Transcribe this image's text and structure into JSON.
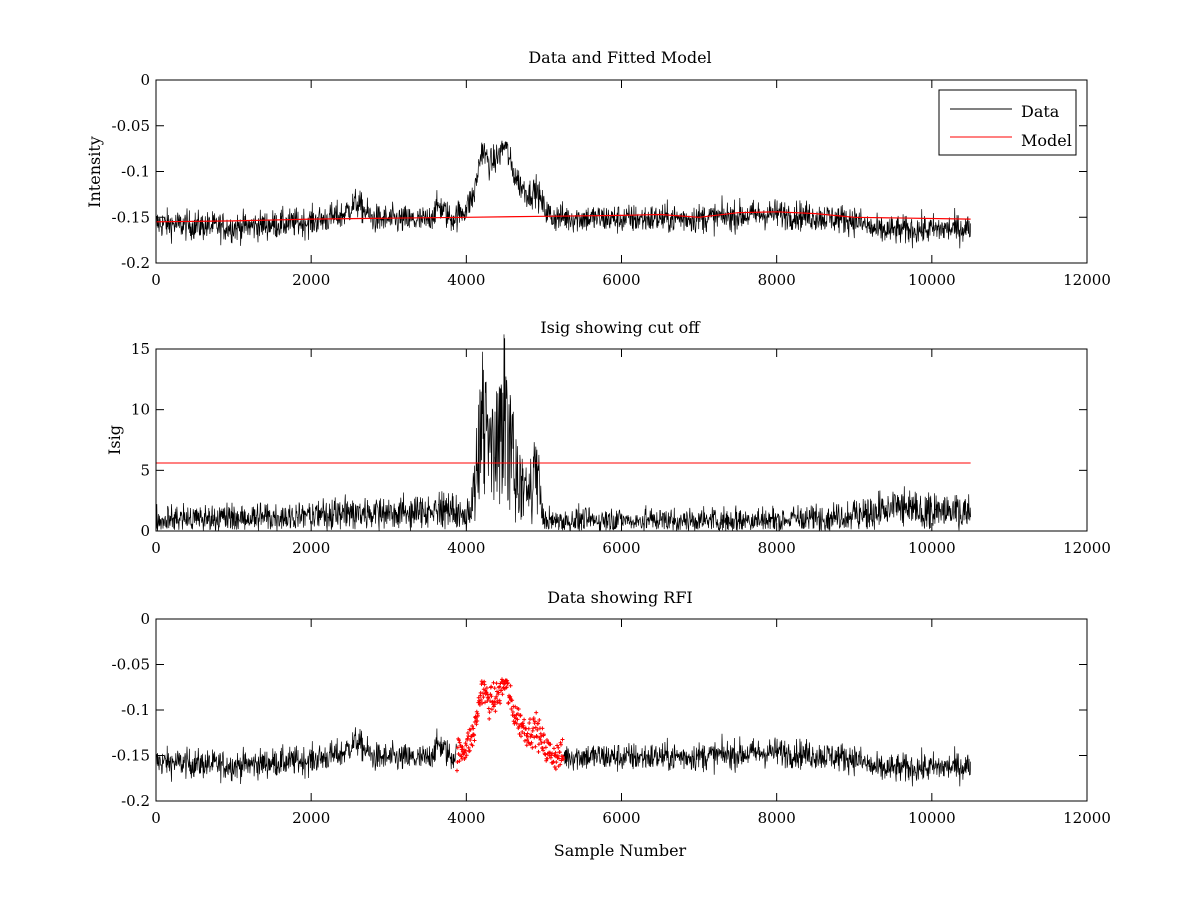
{
  "figure": {
    "background": "#ffffff",
    "colors": {
      "data": "#000000",
      "model": "#ff0000",
      "cutoff": "#ff0000",
      "rfi": "#ff0000"
    }
  },
  "chart_data": [
    {
      "type": "line",
      "title": "Data and Fitted Model",
      "xlabel": "",
      "ylabel": "Intensity",
      "xlim": [
        0,
        12000
      ],
      "ylim": [
        -0.2,
        0
      ],
      "xticks": [
        0,
        2000,
        4000,
        6000,
        8000,
        10000,
        12000
      ],
      "yticks": [
        -0.2,
        -0.15,
        -0.1,
        -0.05,
        0
      ],
      "xtick_labels": [
        "0",
        "2000",
        "4000",
        "6000",
        "8000",
        "10000",
        "12000"
      ],
      "ytick_labels": [
        "-0.2",
        "-0.15",
        "-0.1",
        "-0.05",
        "0"
      ],
      "legend": {
        "position": "top-right",
        "entries": [
          "Data",
          "Model"
        ]
      },
      "series": [
        {
          "name": "Data",
          "color": "#000000",
          "x_range": [
            0,
            10500
          ],
          "noise_amplitude": 0.008,
          "envelope": [
            [
              0,
              -0.157
            ],
            [
              1000,
              -0.161
            ],
            [
              2000,
              -0.155
            ],
            [
              2400,
              -0.148
            ],
            [
              2580,
              -0.134
            ],
            [
              2800,
              -0.152
            ],
            [
              3500,
              -0.154
            ],
            [
              3650,
              -0.137
            ],
            [
              3800,
              -0.152
            ],
            [
              3900,
              -0.147
            ],
            [
              4000,
              -0.14
            ],
            [
              4100,
              -0.125
            ],
            [
              4200,
              -0.075
            ],
            [
              4300,
              -0.092
            ],
            [
              4400,
              -0.085
            ],
            [
              4500,
              -0.07
            ],
            [
              4600,
              -0.1
            ],
            [
              4700,
              -0.115
            ],
            [
              4800,
              -0.125
            ],
            [
              4900,
              -0.12
            ],
            [
              5000,
              -0.14
            ],
            [
              5100,
              -0.15
            ],
            [
              6000,
              -0.152
            ],
            [
              7000,
              -0.151
            ],
            [
              8000,
              -0.146
            ],
            [
              9000,
              -0.153
            ],
            [
              9300,
              -0.165
            ],
            [
              10500,
              -0.162
            ]
          ]
        },
        {
          "name": "Model",
          "color": "#ff0000",
          "points": [
            [
              0,
              -0.155
            ],
            [
              1000,
              -0.154
            ],
            [
              2000,
              -0.152
            ],
            [
              3000,
              -0.151
            ],
            [
              4000,
              -0.15
            ],
            [
              5000,
              -0.149
            ],
            [
              6000,
              -0.148
            ],
            [
              6500,
              -0.147
            ],
            [
              7000,
              -0.15
            ],
            [
              7500,
              -0.145
            ],
            [
              8000,
              -0.144
            ],
            [
              8500,
              -0.146
            ],
            [
              9000,
              -0.15
            ],
            [
              10500,
              -0.152
            ]
          ]
        }
      ]
    },
    {
      "type": "line",
      "title": "Isig showing cut off",
      "xlabel": "",
      "ylabel": "Isig",
      "xlim": [
        0,
        12000
      ],
      "ylim": [
        0,
        15
      ],
      "xticks": [
        0,
        2000,
        4000,
        6000,
        8000,
        10000,
        12000
      ],
      "yticks": [
        0,
        5,
        10,
        15
      ],
      "xtick_labels": [
        "0",
        "2000",
        "4000",
        "6000",
        "8000",
        "10000",
        "12000"
      ],
      "ytick_labels": [
        "0",
        "5",
        "10",
        "15"
      ],
      "series": [
        {
          "color": "#000000",
          "x_range": [
            0,
            10500
          ],
          "envelope": [
            [
              0,
              1.0
            ],
            [
              2000,
              1.2
            ],
            [
              2500,
              1.5
            ],
            [
              3600,
              1.5
            ],
            [
              3700,
              2.0
            ],
            [
              4000,
              1.0
            ],
            [
              4100,
              3.0
            ],
            [
              4200,
              9.5
            ],
            [
              4300,
              6.5
            ],
            [
              4400,
              7.5
            ],
            [
              4500,
              10.0
            ],
            [
              4600,
              6.0
            ],
            [
              4700,
              3.5
            ],
            [
              4800,
              3.0
            ],
            [
              4900,
              5.0
            ],
            [
              5000,
              0.8
            ],
            [
              6000,
              0.9
            ],
            [
              8000,
              0.9
            ],
            [
              9000,
              1.3
            ],
            [
              9500,
              1.8
            ],
            [
              10500,
              1.5
            ]
          ]
        },
        {
          "color": "#ff0000",
          "points": [
            [
              0,
              5.6
            ],
            [
              10500,
              5.6
            ]
          ]
        }
      ]
    },
    {
      "type": "scatter",
      "title": "Data showing RFI",
      "xlabel": "Sample Number",
      "ylabel": "",
      "xlim": [
        0,
        12000
      ],
      "ylim": [
        -0.2,
        0
      ],
      "xticks": [
        0,
        2000,
        4000,
        6000,
        8000,
        10000,
        12000
      ],
      "yticks": [
        -0.2,
        -0.15,
        -0.1,
        -0.05,
        0
      ],
      "xtick_labels": [
        "0",
        "2000",
        "4000",
        "6000",
        "8000",
        "10000",
        "12000"
      ],
      "ytick_labels": [
        "-0.2",
        "-0.15",
        "-0.1",
        "-0.05",
        "0"
      ],
      "series": [
        {
          "color": "#000000",
          "x_range": [
            0,
            10500
          ]
        },
        {
          "color": "#ff0000",
          "x_range": [
            3880,
            5250
          ]
        }
      ]
    }
  ]
}
